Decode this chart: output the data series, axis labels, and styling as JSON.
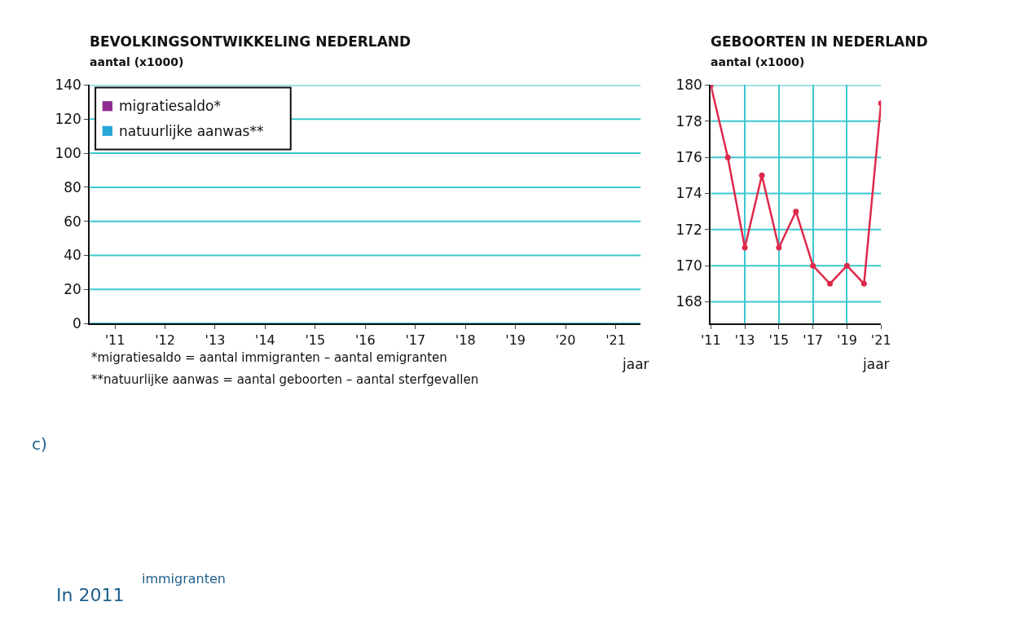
{
  "chart_data": [
    {
      "type": "bar",
      "title": "BEVOLKINGSONTWIKKELING NEDERLAND",
      "ylabel": "aantal (x1000)",
      "xlabel": "jaar",
      "categories": [
        "'11",
        "'12",
        "'13",
        "'14",
        "'15",
        "'16",
        "'17",
        "'18",
        "'19",
        "'20",
        "'21"
      ],
      "series": [
        {
          "name": "migratiesaldo*",
          "color": "#8e2a8e",
          "values": [
            null,
            null,
            null,
            null,
            null,
            null,
            null,
            null,
            null,
            null,
            null
          ]
        },
        {
          "name": "natuurlijke aanwas**",
          "color": "#29a8d8",
          "values": [
            null,
            null,
            null,
            null,
            null,
            null,
            null,
            null,
            null,
            null,
            null
          ]
        }
      ],
      "ylim": [
        0,
        140
      ],
      "yticks": [
        0,
        20,
        40,
        60,
        80,
        100,
        120,
        140
      ],
      "grid": "y",
      "legend": "top left",
      "annotations": [
        "*migratiesaldo = aantal immigranten – aantal emigranten",
        "**natuurlijke aanwas = aantal geboorten – aantal sterfgevallen",
        "c)",
        "In 2011",
        "immigranten"
      ]
    },
    {
      "type": "line",
      "title": "GEBOORTEN IN NEDERLAND",
      "ylabel": "aantal (x1000)",
      "xlabel": "jaar",
      "x": [
        2011,
        2012,
        2013,
        2014,
        2015,
        2016,
        2017,
        2018,
        2019,
        2020,
        2021
      ],
      "series": [
        {
          "color": "#e0284a",
          "values": [
            180,
            176,
            171,
            175,
            171,
            173,
            170,
            169,
            170,
            169,
            179
          ]
        }
      ],
      "xlim": [
        2011,
        2021
      ],
      "xticks": [
        {
          "value": 2011,
          "label": "'11"
        },
        {
          "value": 2013,
          "label": "'13"
        },
        {
          "value": 2015,
          "label": "'15"
        },
        {
          "value": 2017,
          "label": "'17"
        },
        {
          "value": 2019,
          "label": "'19"
        },
        {
          "value": 2021,
          "label": "'21"
        }
      ],
      "ylim": [
        166.8,
        180
      ],
      "yticks": [
        168,
        170,
        172,
        174,
        176,
        178,
        180
      ],
      "grid": true,
      "marker": "circle",
      "line_style": "solid"
    }
  ]
}
